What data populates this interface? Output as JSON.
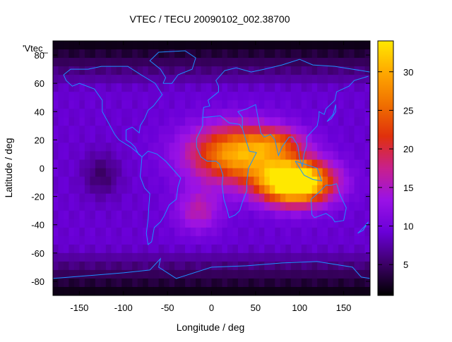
{
  "chart_data": {
    "type": "heatmap",
    "title": "VTEC / TECU 20090102_002.38700",
    "xlabel": "Longitude / deg",
    "ylabel": "Latitude / deg",
    "series_label": "'Vtec_",
    "xlim": [
      -180,
      180
    ],
    "ylim": [
      -90,
      90
    ],
    "x_ticks": [
      "-150",
      "-100",
      "-50",
      "0",
      "50",
      "100",
      "150"
    ],
    "x_tick_values": [
      -150,
      -100,
      -50,
      0,
      50,
      100,
      150
    ],
    "y_ticks": [
      "80",
      "60",
      "40",
      "20",
      "0",
      "-20",
      "-40",
      "-60",
      "-80"
    ],
    "y_tick_values": [
      80,
      60,
      40,
      20,
      0,
      -20,
      -40,
      -60,
      -80
    ],
    "colorbar": {
      "range": [
        1,
        34
      ],
      "ticks": [
        "5",
        "10",
        "15",
        "20",
        "25",
        "30"
      ],
      "tick_values": [
        5,
        10,
        15,
        20,
        25,
        30
      ],
      "palette": [
        "#000000",
        "#3d0068",
        "#6a00d8",
        "#9a12e6",
        "#c8208c",
        "#e0300c",
        "#f07000",
        "#ffa800",
        "#ffe800"
      ]
    },
    "grid": false,
    "coastline_color": "#1e90ff",
    "field_features": [
      {
        "lon": 95,
        "lat": -10,
        "value": 33,
        "spread_lon": 40,
        "spread_lat": 15
      },
      {
        "lon": 30,
        "lat": 10,
        "value": 21,
        "spread_lon": 55,
        "spread_lat": 20
      },
      {
        "lon": 75,
        "lat": 18,
        "value": 8,
        "spread_lon": 30,
        "spread_lat": 10
      },
      {
        "lon": -15,
        "lat": -30,
        "value": 7,
        "spread_lon": 25,
        "spread_lat": 15
      },
      {
        "lon": -125,
        "lat": -5,
        "value": -4,
        "spread_lon": 20,
        "spread_lat": 15
      }
    ],
    "field_base": 9
  }
}
